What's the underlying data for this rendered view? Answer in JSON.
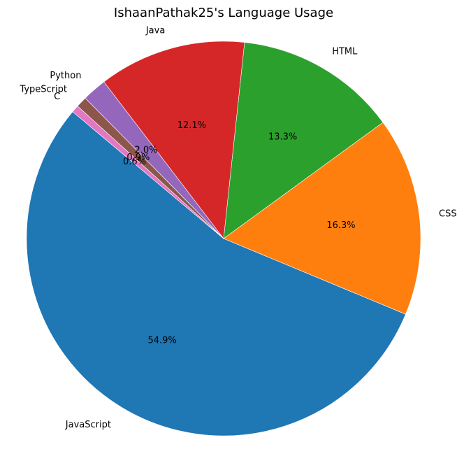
{
  "chart_data": {
    "type": "pie",
    "title": "IshaanPathak25's Language Usage",
    "slices": [
      {
        "label": "JavaScript",
        "value": 54.9,
        "pct_label": "54.9%",
        "color": "#1f77b4"
      },
      {
        "label": "CSS",
        "value": 16.3,
        "pct_label": "16.3%",
        "color": "#ff7f0e"
      },
      {
        "label": "HTML",
        "value": 13.3,
        "pct_label": "13.3%",
        "color": "#2ca02c"
      },
      {
        "label": "Java",
        "value": 12.1,
        "pct_label": "12.1%",
        "color": "#d62728"
      },
      {
        "label": "Python",
        "value": 2.0,
        "pct_label": "2.0%",
        "color": "#9467bd"
      },
      {
        "label": "TypeScript",
        "value": 0.9,
        "pct_label": "0.9%",
        "color": "#8c564b"
      },
      {
        "label": "C",
        "value": 0.6,
        "pct_label": "0.6%",
        "color": "#e377c2"
      }
    ],
    "start_angle_deg": 140,
    "direction": "counterclockwise"
  }
}
